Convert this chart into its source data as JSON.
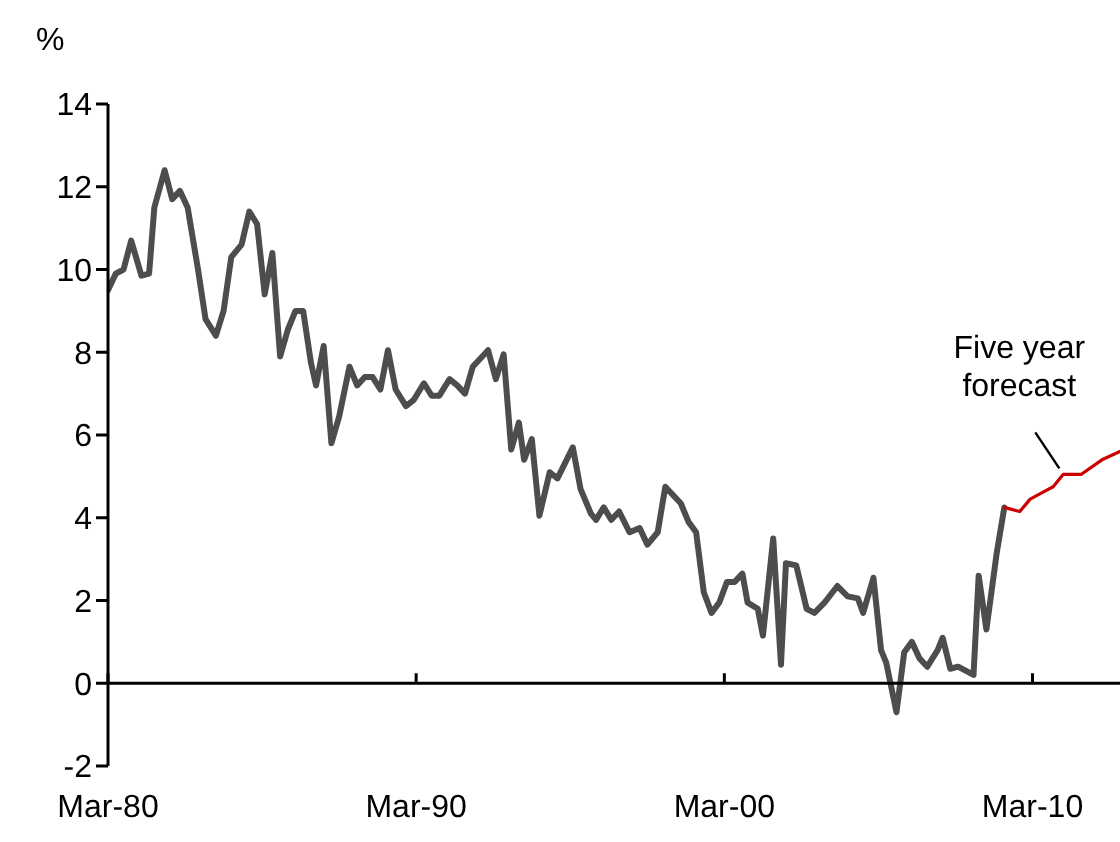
{
  "chart_data": {
    "type": "line",
    "ylabel": "%",
    "xlim": [
      "1980-03",
      "2013-01"
    ],
    "xticks": [
      {
        "value": "1980-03",
        "label": "Mar-80"
      },
      {
        "value": "1990-03",
        "label": "Mar-90"
      },
      {
        "value": "2000-03",
        "label": "Mar-00"
      },
      {
        "value": "2010-03",
        "label": "Mar-10"
      }
    ],
    "ylim": [
      -2,
      14
    ],
    "yticks": [
      -2,
      0,
      2,
      4,
      6,
      8,
      10,
      12,
      14
    ],
    "grid": false,
    "legend": false,
    "ref_lines": [
      {
        "axis": "y",
        "value": 0,
        "color": "#000000"
      }
    ],
    "marker": "none",
    "line_style": "solid",
    "annotations": [
      {
        "text": "Five year forecast",
        "x": "2011-03",
        "y": 5.05
      }
    ],
    "series": [
      {
        "color": "#4d4d4d",
        "x": [
          "1980-03",
          "1980-06",
          "1980-09",
          "1980-12",
          "1981-04",
          "1981-07",
          "1981-09",
          "1982-01",
          "1982-04",
          "1982-07",
          "1982-10",
          "1983-02",
          "1983-05",
          "1983-09",
          "1983-12",
          "1984-03",
          "1984-07",
          "1984-10",
          "1985-01",
          "1985-04",
          "1985-07",
          "1985-10",
          "1986-01",
          "1986-04",
          "1986-07",
          "1986-10",
          "1986-12",
          "1987-03",
          "1987-06",
          "1987-09",
          "1988-01",
          "1988-04",
          "1988-07",
          "1988-10",
          "1989-01",
          "1989-04",
          "1989-07",
          "1989-11",
          "1990-02",
          "1990-06",
          "1990-09",
          "1990-12",
          "1991-04",
          "1991-07",
          "1991-10",
          "1992-01",
          "1992-04",
          "1992-07",
          "1992-10",
          "1993-01",
          "1993-04",
          "1993-07",
          "1993-09",
          "1993-12",
          "1994-03",
          "1994-07",
          "1994-10",
          "1995-04",
          "1995-07",
          "1995-11",
          "1996-01",
          "1996-04",
          "1996-07",
          "1996-10",
          "1997-02",
          "1997-06",
          "1997-09",
          "1998-01",
          "1998-04",
          "1998-07",
          "1998-10",
          "1999-01",
          "1999-04",
          "1999-07",
          "1999-10",
          "2000-01",
          "2000-04",
          "2000-07",
          "2000-10",
          "2000-12",
          "2001-04",
          "2001-06",
          "2001-10",
          "2002-01",
          "2002-03",
          "2002-07",
          "2002-11",
          "2003-02",
          "2003-06",
          "2003-11",
          "2004-03",
          "2004-07",
          "2004-09",
          "2005-01",
          "2005-04",
          "2005-06",
          "2005-10",
          "2006-01",
          "2006-04",
          "2006-07",
          "2006-10",
          "2007-02",
          "2007-04",
          "2007-07",
          "2007-10",
          "2008-04",
          "2008-06",
          "2008-09",
          "2009-01",
          "2009-04"
        ],
        "values": [
          9.5,
          9.9,
          10.0,
          10.7,
          9.85,
          9.9,
          11.5,
          12.4,
          11.7,
          11.9,
          11.5,
          10.0,
          8.8,
          8.4,
          9.0,
          10.3,
          10.6,
          11.4,
          11.1,
          9.4,
          10.4,
          7.9,
          8.55,
          9.0,
          9.0,
          7.75,
          7.2,
          8.15,
          5.8,
          6.45,
          7.65,
          7.2,
          7.4,
          7.4,
          7.1,
          8.05,
          7.1,
          6.7,
          6.85,
          7.25,
          6.95,
          6.95,
          7.35,
          7.2,
          7.0,
          7.65,
          7.85,
          8.05,
          7.35,
          7.95,
          5.65,
          6.3,
          5.4,
          5.9,
          4.05,
          5.1,
          4.95,
          5.7,
          4.7,
          4.1,
          3.95,
          4.25,
          3.95,
          4.15,
          3.65,
          3.75,
          3.35,
          3.65,
          4.75,
          4.55,
          4.35,
          3.9,
          3.65,
          2.2,
          1.7,
          1.95,
          2.45,
          2.45,
          2.65,
          1.95,
          1.8,
          1.15,
          3.5,
          0.45,
          2.9,
          2.85,
          1.8,
          1.7,
          1.95,
          2.35,
          2.1,
          2.05,
          1.7,
          2.55,
          0.8,
          0.5,
          -0.7,
          0.75,
          1.0,
          0.6,
          0.4,
          0.8,
          1.1,
          0.35,
          0.4,
          0.2,
          2.6,
          1.3,
          3.15,
          4.25
        ]
      },
      {
        "color": "#cc0000",
        "x": [
          "2009-04",
          "2009-10",
          "2010-02",
          "2010-08",
          "2010-11",
          "2011-03",
          "2011-10",
          "2012-06",
          "2013-01"
        ],
        "values": [
          4.25,
          4.15,
          4.45,
          4.65,
          4.75,
          5.05,
          5.05,
          5.4,
          5.6
        ]
      }
    ]
  }
}
